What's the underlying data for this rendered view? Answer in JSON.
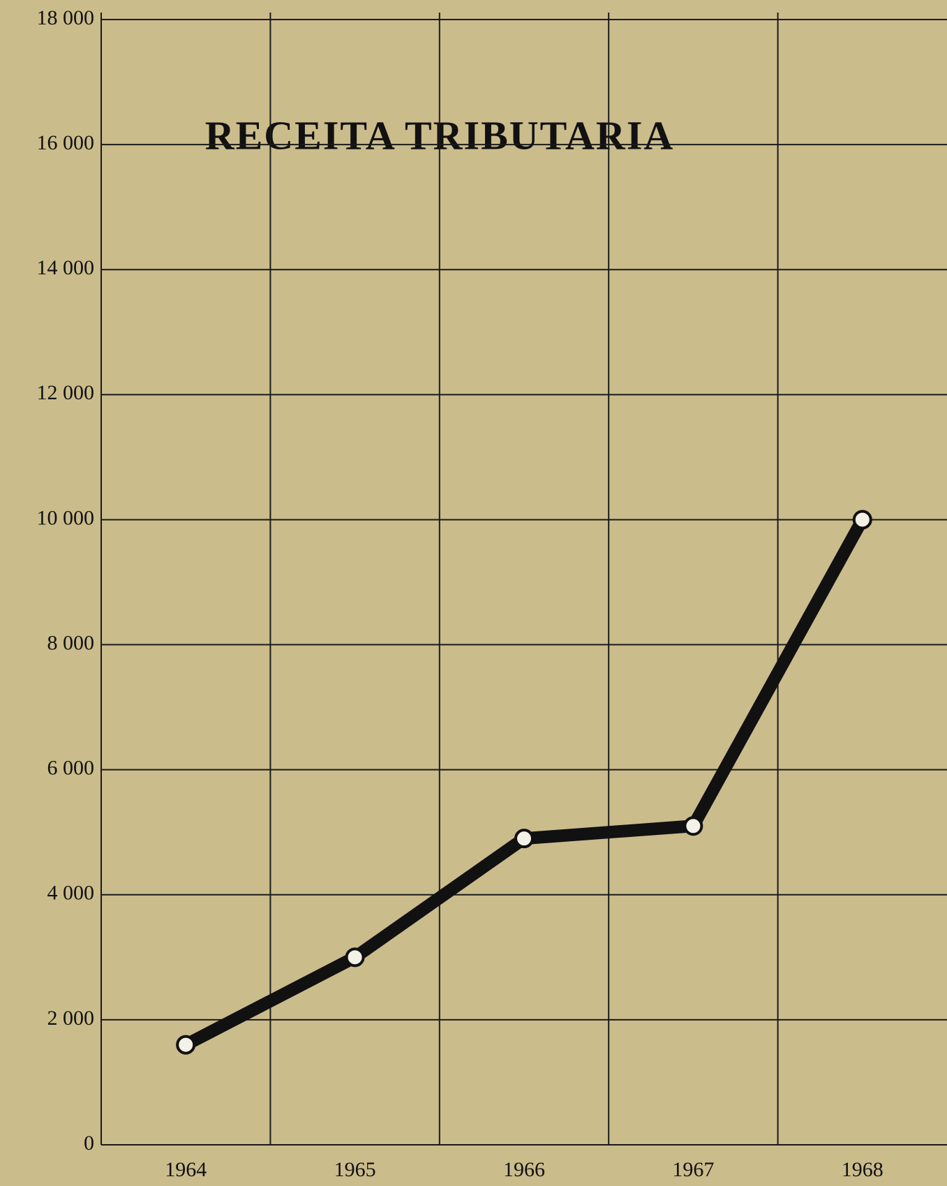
{
  "chart_data": {
    "type": "line",
    "title": "RECEITA TRIBUTARIA",
    "categories": [
      "1964",
      "1965",
      "1966",
      "1967",
      "1968"
    ],
    "series": [
      {
        "name": "Receita Tributaria",
        "color": "#111111",
        "values": [
          1600,
          3000,
          4900,
          5100,
          10000
        ]
      }
    ],
    "ylim": [
      0,
      18000
    ],
    "yticks": [
      0,
      {
        "value": 2000,
        "label": "2 000"
      },
      {
        "value": 4000,
        "label": "4 000"
      },
      {
        "value": 6000,
        "label": "6 000"
      },
      {
        "value": 8000,
        "label": "8 000"
      },
      {
        "value": 10000,
        "label": "10 000"
      },
      {
        "value": 12000,
        "label": "12 000"
      },
      {
        "value": 14000,
        "label": "14 000"
      },
      {
        "value": 16000,
        "label": "16 000"
      },
      {
        "value": 18000,
        "label": "18 000"
      }
    ],
    "grid": true
  }
}
